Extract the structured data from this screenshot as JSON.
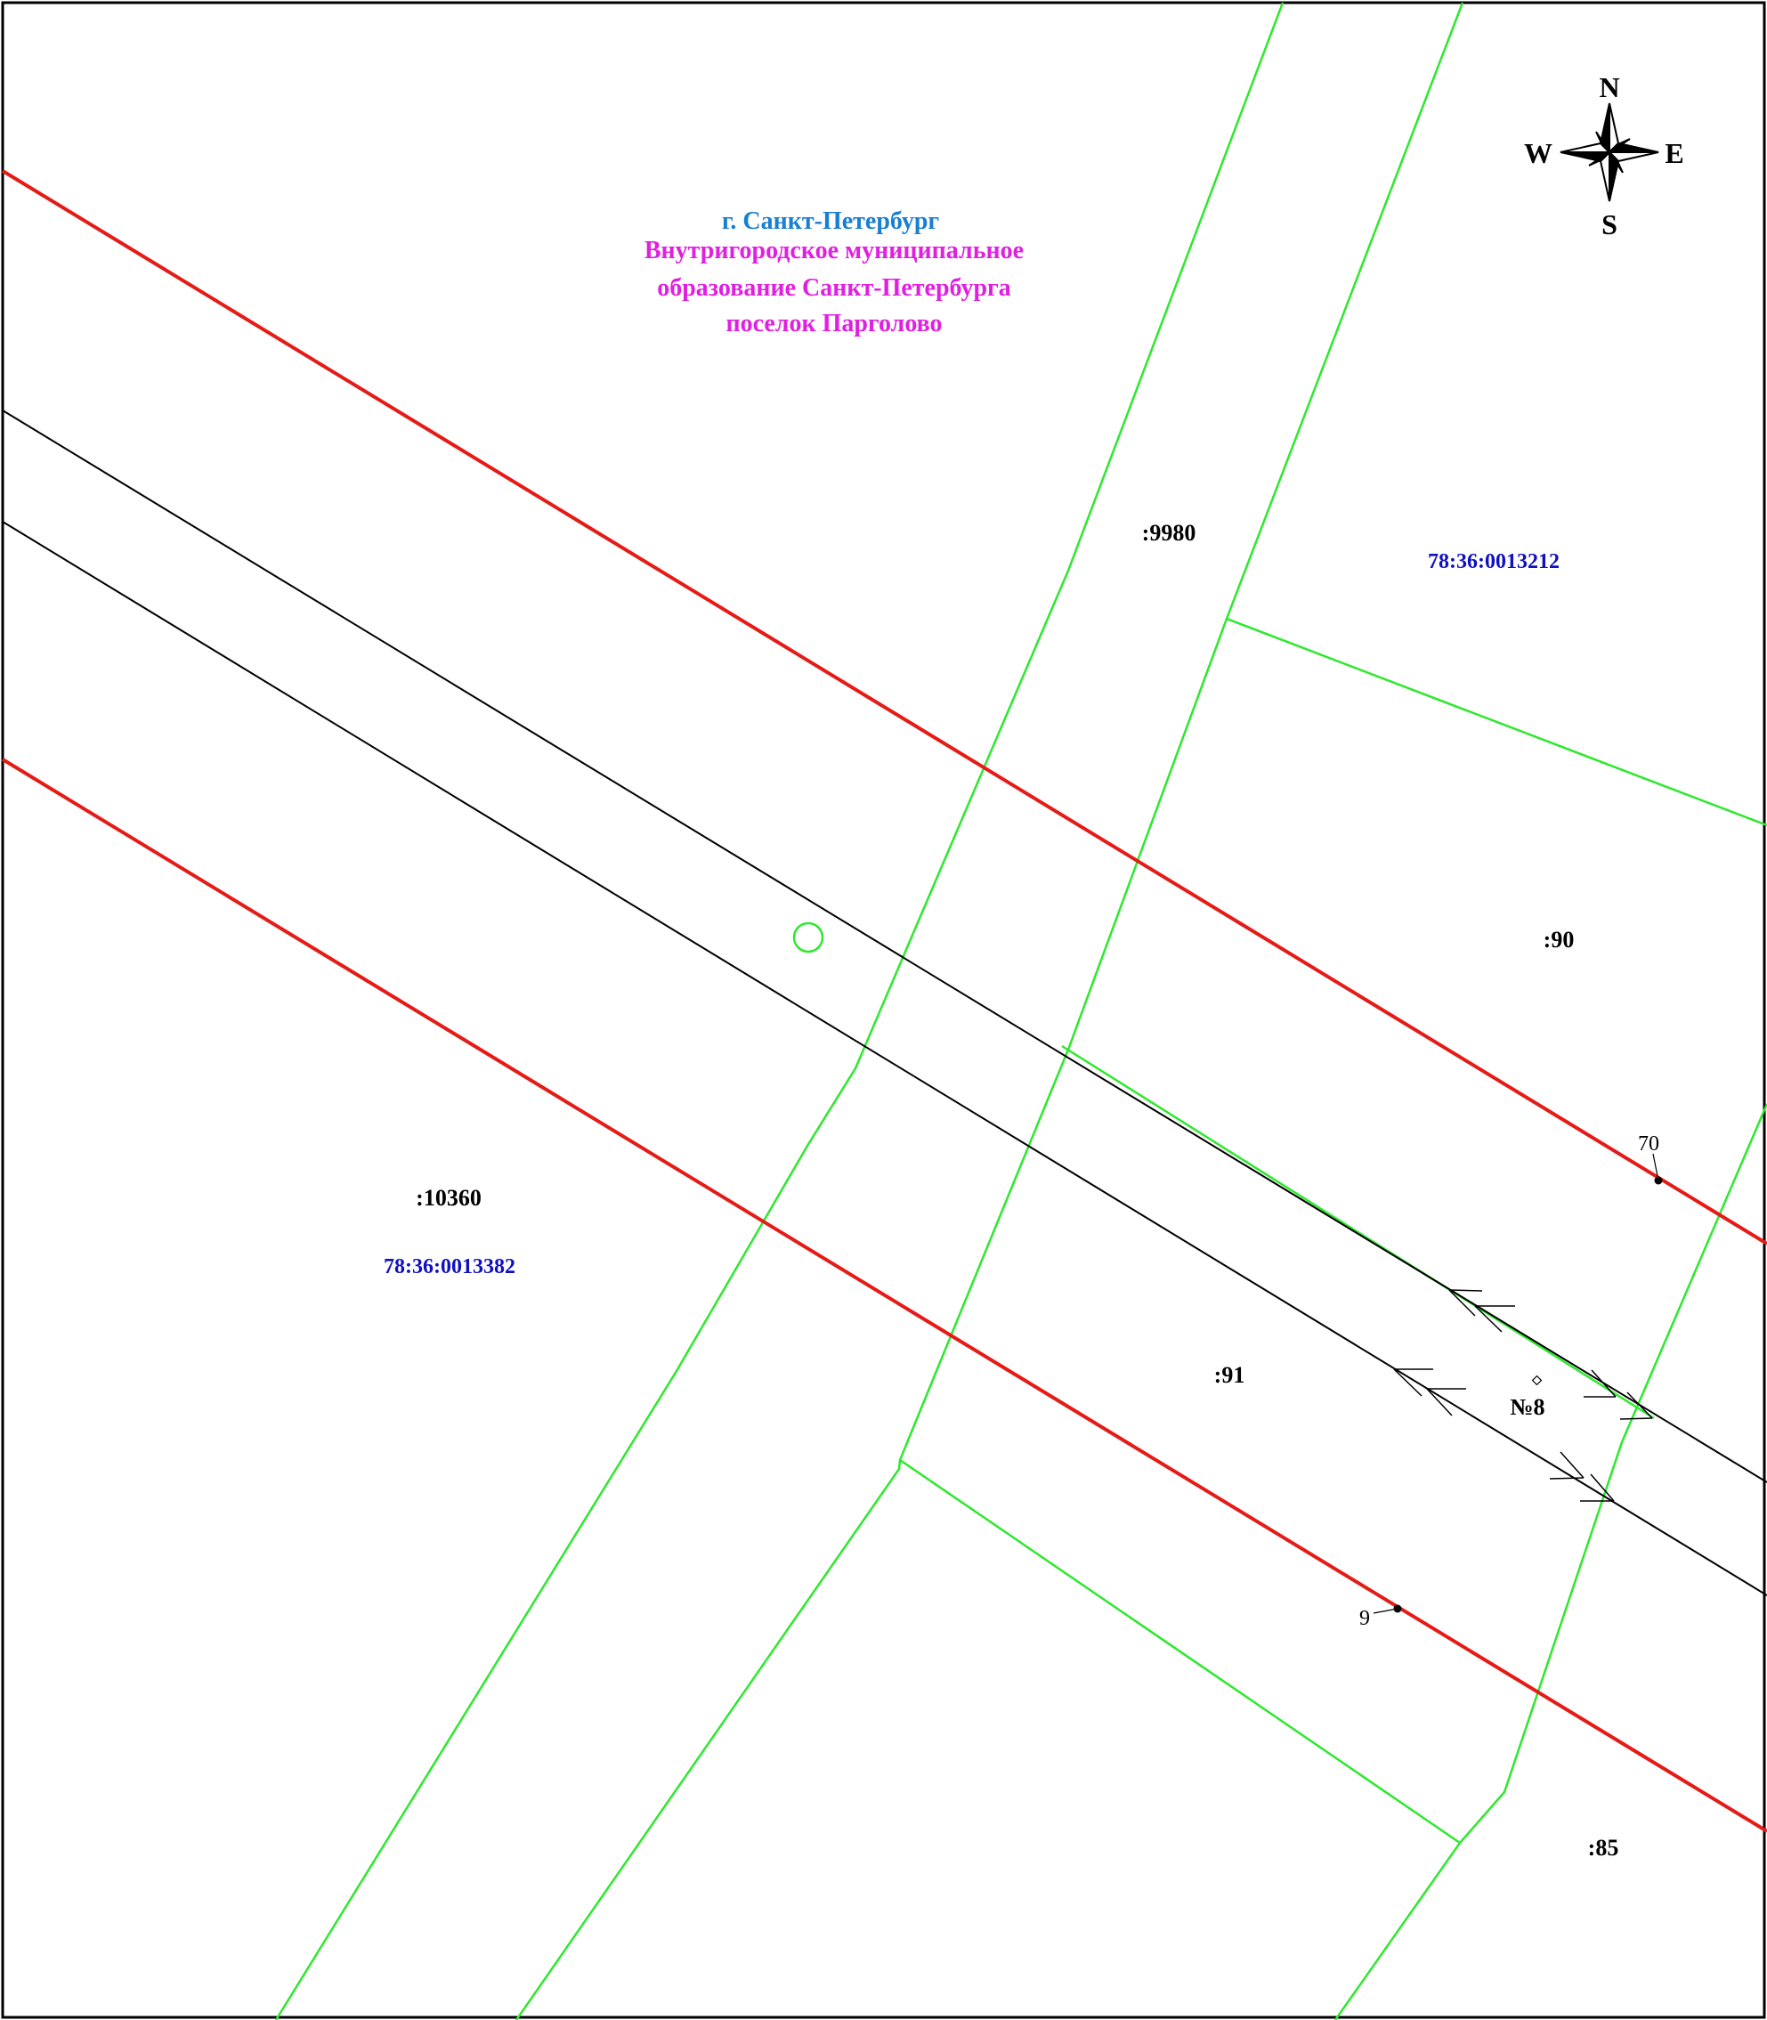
{
  "title": {
    "city": "г. Санкт-Петербург",
    "line1": "Внутригородское муниципальное",
    "line2": "образование Санкт-Петербурга",
    "line3": "поселок Парголово"
  },
  "compass": {
    "north": "N",
    "south": "S",
    "west": "W",
    "east": "E"
  },
  "parcels": {
    "p9980": ":9980",
    "p90": ":90",
    "p10360": ":10360",
    "p91": ":91",
    "p85": ":85"
  },
  "quarters": {
    "q13212": "78:36:0013212",
    "q13382": "78:36:0013382"
  },
  "object_label": "№8",
  "points": {
    "p70": "70",
    "p9": "9"
  },
  "colors": {
    "city_title": "#1a7fd0",
    "municipal_title": "#e020e0",
    "quarter_number": "#1010c0",
    "zone_boundary": "#e41b17",
    "parcel_boundary": "#2ee82e",
    "pipeline": "#000000"
  }
}
